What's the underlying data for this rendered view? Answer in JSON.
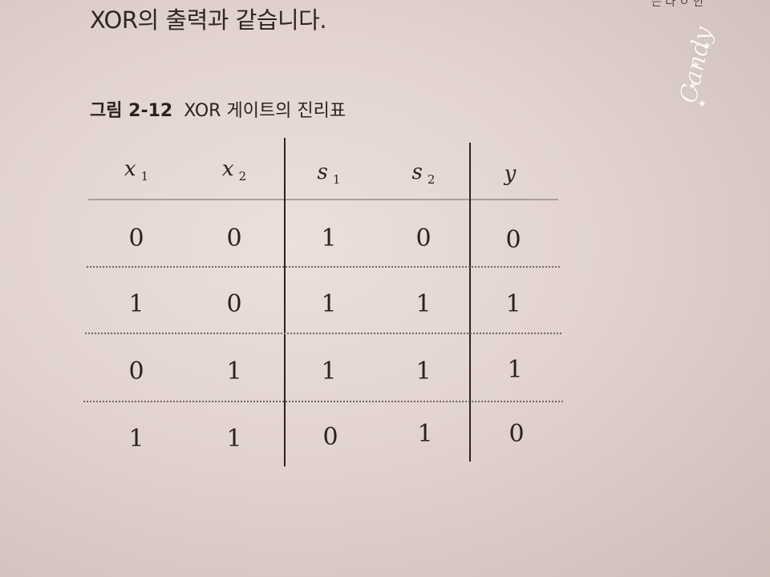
{
  "top_text": "XOR의 출력과 같습니다.",
  "top_right_fragment": "는 다 ㅇ 인",
  "caption": {
    "figure_number": "그림 2-12",
    "title": "XOR 게이트의 진리표"
  },
  "table": {
    "headers": [
      {
        "var": "x",
        "sub": "1"
      },
      {
        "var": "x",
        "sub": "2"
      },
      {
        "var": "s",
        "sub": "1"
      },
      {
        "var": "s",
        "sub": "2"
      },
      {
        "var": "y",
        "sub": ""
      }
    ],
    "rows": [
      [
        "0",
        "0",
        "1",
        "0",
        "0"
      ],
      [
        "1",
        "0",
        "1",
        "1",
        "1"
      ],
      [
        "0",
        "1",
        "1",
        "1",
        "1"
      ],
      [
        "1",
        "1",
        "0",
        "1",
        "0"
      ]
    ]
  },
  "watermark": "Candy"
}
